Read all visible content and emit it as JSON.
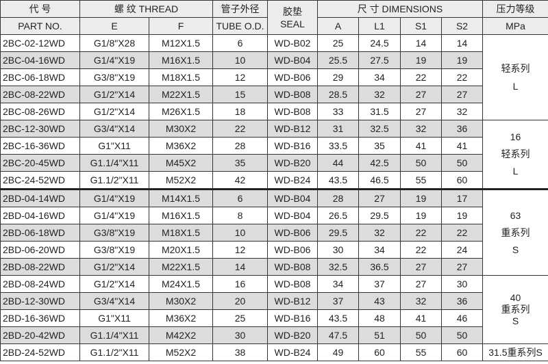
{
  "header": {
    "part_cn": "代 号",
    "part_en": "PART NO.",
    "thread": "螺 纹  THREAD",
    "e": "E",
    "f": "F",
    "tube_cn": "管子外径",
    "tube_en": "TUBE O.D.",
    "seal_cn": "胶垫",
    "seal_en": "SEAL",
    "dims": "尺 寸  DIMENSIONS",
    "a": "A",
    "l1": "L1",
    "s1": "S1",
    "s2": "S2",
    "press_cn": "压力等级",
    "press_en": "MPa"
  },
  "rows": [
    [
      "2BC-02-12WD",
      "G1/8\"X28",
      "M12X1.5",
      "6",
      "WD-B02",
      "25",
      "24.5",
      "14",
      "14"
    ],
    [
      "2BC-04-16WD",
      "G1/4\"X19",
      "M16X1.5",
      "10",
      "WD-B04",
      "25.5",
      "27.5",
      "19",
      "19"
    ],
    [
      "2BC-06-18WD",
      "G3/8\"X19",
      "M18X1.5",
      "12",
      "WD-B06",
      "29",
      "34",
      "22",
      "22"
    ],
    [
      "2BC-08-22WD",
      "G1/2\"X14",
      "M22X1.5",
      "15",
      "WD-B08",
      "28.5",
      "32",
      "27",
      "27"
    ],
    [
      "2BC-08-26WD",
      "G1/2\"X14",
      "M26X1.5",
      "18",
      "WD-B08",
      "33",
      "31.5",
      "27",
      "32"
    ],
    [
      "2BC-12-30WD",
      "G3/4\"X14",
      "M30X2",
      "22",
      "WD-B12",
      "31",
      "32.5",
      "32",
      "36"
    ],
    [
      "2BC-16-36WD",
      "G1\"X11",
      "M36X2",
      "28",
      "WD-B16",
      "33.5",
      "35",
      "41",
      "41"
    ],
    [
      "2BC-20-45WD",
      "G1.1/4\"X11",
      "M45X2",
      "35",
      "WD-B20",
      "44",
      "42.5",
      "50",
      "50"
    ],
    [
      "2BC-24-52WD",
      "G1.1/2\"X11",
      "M52X2",
      "42",
      "WD-B24",
      "43.5",
      "46.5",
      "55",
      "60"
    ],
    [
      "2BD-04-14WD",
      "G1/4\"X19",
      "M14X1.5",
      "6",
      "WD-B04",
      "28",
      "27",
      "19",
      "17"
    ],
    [
      "2BD-04-16WD",
      "G1/4\"X19",
      "M16X1.5",
      "8",
      "WD-B04",
      "26.5",
      "29.5",
      "19",
      "19"
    ],
    [
      "2BD-06-18WD",
      "G3/8\"X19",
      "M18X1.5",
      "10",
      "WD-B06",
      "29.5",
      "32",
      "22",
      "22"
    ],
    [
      "2BD-06-20WD",
      "G3/8\"X19",
      "M20X1.5",
      "12",
      "WD-B06",
      "30",
      "34",
      "22",
      "24"
    ],
    [
      "2BD-08-22WD",
      "G1/2\"X14",
      "M22X1.5",
      "14",
      "WD-B08",
      "32.5",
      "36.5",
      "27",
      "27"
    ],
    [
      "2BD-08-24WD",
      "G1/2\"X14",
      "M24X1.5",
      "16",
      "WD-B08",
      "34",
      "37",
      "27",
      "30"
    ],
    [
      "2BD-12-30WD",
      "G3/4\"X14",
      "M30X2",
      "20",
      "WD-B12",
      "37",
      "43",
      "32",
      "36"
    ],
    [
      "2BD-16-36WD",
      "G1\"X11",
      "M36X2",
      "25",
      "WD-B16",
      "43.5",
      "48",
      "41",
      "46"
    ],
    [
      "2BD-20-42WD",
      "G1.1/4\"X11",
      "M42X2",
      "30",
      "WD-B20",
      "47.5",
      "51",
      "50",
      "50"
    ],
    [
      "2BD-24-52WD",
      "G1.1/2\"X11",
      "M52X2",
      "38",
      "WD-B24",
      "49",
      "60",
      "55",
      "60"
    ]
  ],
  "shaded": [
    1,
    3,
    5,
    7,
    9,
    11,
    13,
    15,
    17
  ],
  "groups": [
    {
      "start": 0,
      "span": 5,
      "lines": [
        "轻系列",
        "L"
      ]
    },
    {
      "start": 5,
      "span": 4,
      "lines": [
        "16",
        "轻系列",
        "L"
      ]
    },
    {
      "start": 9,
      "span": 5,
      "lines": [
        "63",
        "重系列",
        "S"
      ]
    },
    {
      "start": 14,
      "span": 4,
      "lines": [
        "40",
        "重系列",
        "S"
      ]
    },
    {
      "start": 18,
      "span": 1,
      "lines": [
        "31.5重系列S"
      ]
    }
  ],
  "thick_before": [
    9
  ]
}
